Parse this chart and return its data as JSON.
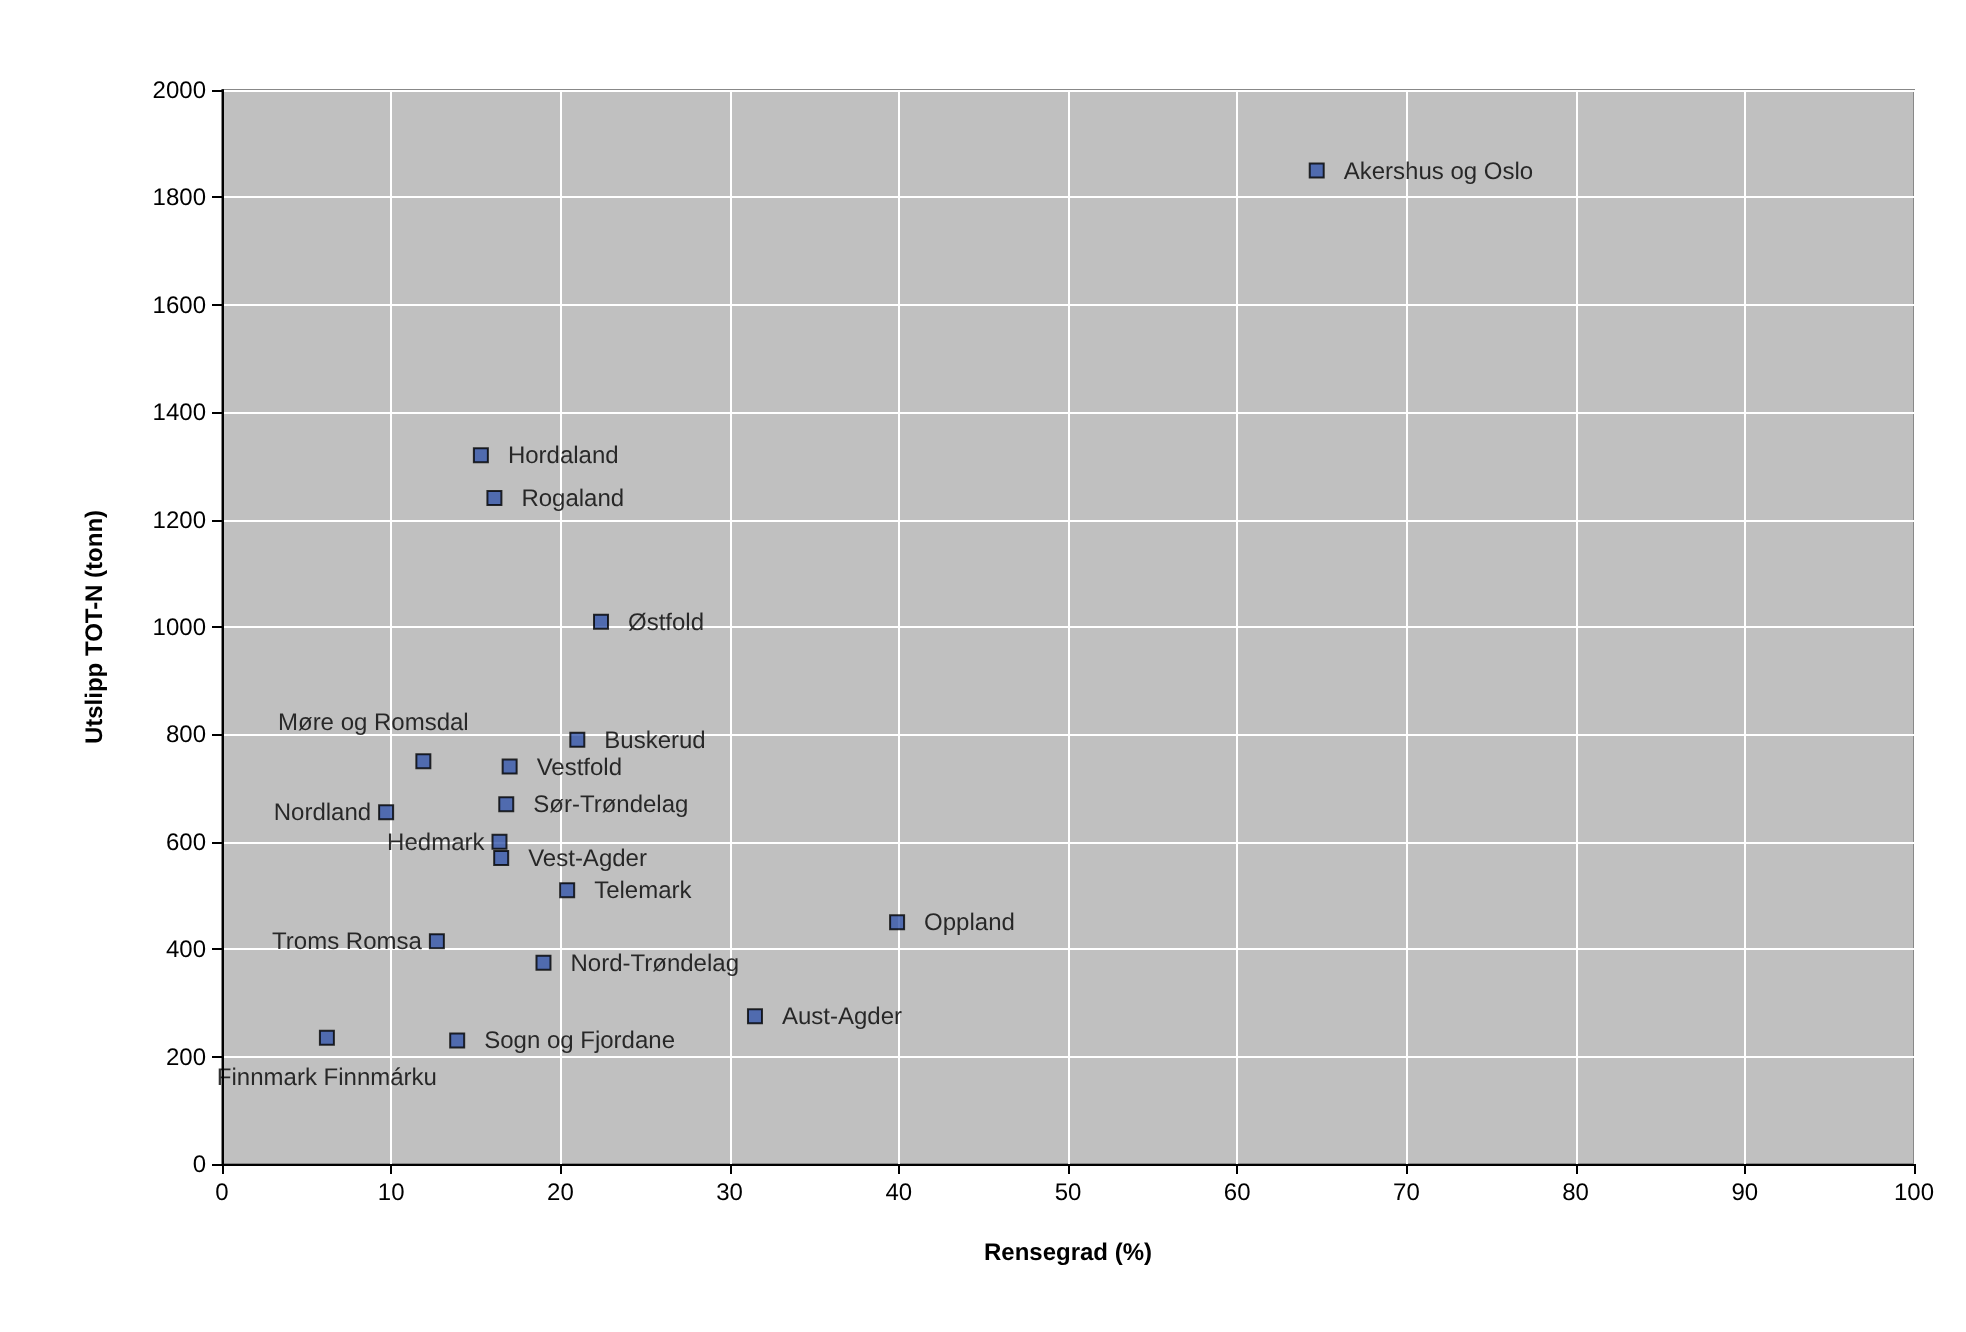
{
  "chart_data": {
    "type": "scatter",
    "xlabel": "Rensegrad (%)",
    "ylabel": "Utslipp TOT-N (tonn)",
    "x": [
      64.7,
      15.3,
      16.1,
      22.4,
      11.9,
      21.0,
      17.0,
      16.8,
      9.7,
      16.4,
      16.5,
      20.4,
      39.9,
      12.7,
      19.0,
      31.5,
      6.2,
      13.9
    ],
    "series": [
      {
        "color": "#3355aa",
        "values": [
          1850,
          1320,
          1240,
          1010,
          750,
          790,
          740,
          670,
          655,
          600,
          570,
          510,
          450,
          415,
          375,
          275,
          235,
          230
        ]
      }
    ],
    "annotations": [
      {
        "text": "Akershus og Oslo",
        "x": 64.7,
        "y": 1850
      },
      {
        "text": "Hordaland",
        "x": 15.3,
        "y": 1320
      },
      {
        "text": "Rogaland",
        "x": 16.1,
        "y": 1240
      },
      {
        "text": "Østfold",
        "x": 22.4,
        "y": 1010
      },
      {
        "text": "Møre og Romsdal",
        "x": 11.9,
        "y": 750
      },
      {
        "text": "Buskerud",
        "x": 21.0,
        "y": 790
      },
      {
        "text": "Vestfold",
        "x": 17.0,
        "y": 740
      },
      {
        "text": "Sør-Trøndelag",
        "x": 16.8,
        "y": 670
      },
      {
        "text": "Nordland",
        "x": 9.7,
        "y": 655
      },
      {
        "text": "Hedmark",
        "x": 16.4,
        "y": 600
      },
      {
        "text": "Vest-Agder",
        "x": 16.5,
        "y": 570
      },
      {
        "text": "Telemark",
        "x": 20.4,
        "y": 510
      },
      {
        "text": "Oppland",
        "x": 39.9,
        "y": 450
      },
      {
        "text": "Troms Romsa",
        "x": 12.7,
        "y": 415
      },
      {
        "text": "Nord-Trøndelag",
        "x": 19.0,
        "y": 375
      },
      {
        "text": "Aust-Agder",
        "x": 31.5,
        "y": 275
      },
      {
        "text": "Finnmark Finnmárku",
        "x": 6.2,
        "y": 235
      },
      {
        "text": "Sogn og Fjordane",
        "x": 13.9,
        "y": 230
      }
    ],
    "xlim": [
      0,
      100
    ],
    "xticks": [
      0,
      10,
      20,
      30,
      40,
      50,
      60,
      70,
      80,
      90,
      100
    ],
    "ylim": [
      0,
      2000
    ],
    "yticks": [
      0,
      200,
      400,
      600,
      800,
      1000,
      1200,
      1400,
      1600,
      1800,
      2000
    ],
    "grid": true,
    "marker": "square"
  }
}
